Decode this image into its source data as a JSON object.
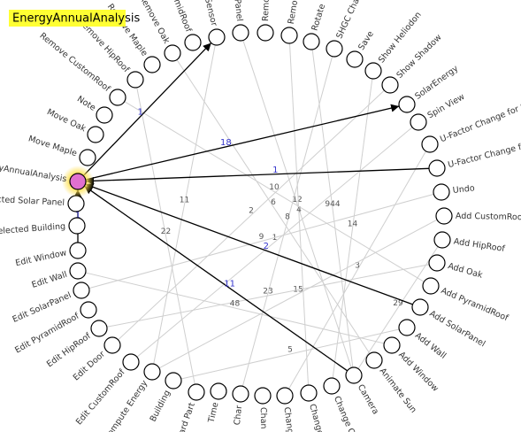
{
  "title": "EnergyAnnualAnalysis",
  "nodes": [
    "Panel",
    "Remo",
    "Remo",
    "Rotate",
    "SHGC Cha",
    "Save",
    "Show Heliodon",
    "Show Shadow",
    "SolarEnergy",
    "Spin View",
    "U-Factor Change for S",
    "U-Factor Change fo",
    "Undo",
    "Add CustomRoof",
    "Add HipRoof",
    "Add Oak",
    "Add PyramidRoof",
    "Add SolarPanel",
    "Add Wall",
    "Add Window",
    "Animate Sun",
    "Camera",
    "Change C",
    "Change",
    "Change",
    "Chan",
    "Char",
    "Time",
    "Board Part",
    "Building",
    "Compute Energy",
    "Edit CustomRoof",
    "Edit Door",
    "Edit HipRoof",
    "Edit PyramidRoof",
    "Edit SolarPanel",
    "Edit Wall",
    "Edit Window",
    "Selected Building",
    "Selected Solar Panel",
    "EnergyAnnualAnalysis",
    "Move Maple",
    "Move Oak",
    "Note",
    "Remove CustomRoof",
    "Remove HipRoof",
    "Remove Maple",
    "Remove Oak",
    "Remove PyramidRoof",
    "Sensor"
  ],
  "selected_node": 40,
  "edges": [
    {
      "from": 0,
      "to": 21,
      "count": 12,
      "highlight": false
    },
    {
      "from": 2,
      "to": 23,
      "count": 4,
      "highlight": false
    },
    {
      "from": 49,
      "to": 30,
      "count": 11,
      "highlight": false
    },
    {
      "from": 9,
      "to": 31,
      "count": 1,
      "highlight": false
    },
    {
      "from": 14,
      "to": 21,
      "count": 29,
      "highlight": false
    },
    {
      "from": 21,
      "to": 3,
      "count": 944,
      "highlight": false
    },
    {
      "from": 12,
      "to": 35,
      "count": 9,
      "highlight": false
    },
    {
      "from": 16,
      "to": 44,
      "count": 10,
      "highlight": false
    },
    {
      "from": 18,
      "to": 29,
      "count": 5,
      "highlight": false
    },
    {
      "from": 20,
      "to": 47,
      "count": 6,
      "highlight": false
    },
    {
      "from": 22,
      "to": 6,
      "count": 14,
      "highlight": false
    },
    {
      "from": 24,
      "to": 10,
      "count": 3,
      "highlight": false
    },
    {
      "from": 26,
      "to": 4,
      "count": 8,
      "highlight": false
    },
    {
      "from": 28,
      "to": 45,
      "count": 22,
      "highlight": false
    },
    {
      "from": 30,
      "to": 13,
      "count": 15,
      "highlight": false
    },
    {
      "from": 32,
      "to": 7,
      "count": 2,
      "highlight": false
    },
    {
      "from": 33,
      "to": 15,
      "count": 23,
      "highlight": false
    },
    {
      "from": 36,
      "to": 19,
      "count": 48,
      "highlight": false
    },
    {
      "from": 40,
      "to": 49,
      "count": 1,
      "highlight": true
    },
    {
      "from": 40,
      "to": 8,
      "count": 18,
      "highlight": true
    },
    {
      "from": 11,
      "to": 40,
      "count": 1,
      "highlight": true
    },
    {
      "from": 17,
      "to": 40,
      "count": 2,
      "highlight": true
    },
    {
      "from": 21,
      "to": 40,
      "count": 11,
      "highlight": true
    },
    {
      "from": 37,
      "to": 40,
      "count": 1,
      "highlight": true
    }
  ]
}
